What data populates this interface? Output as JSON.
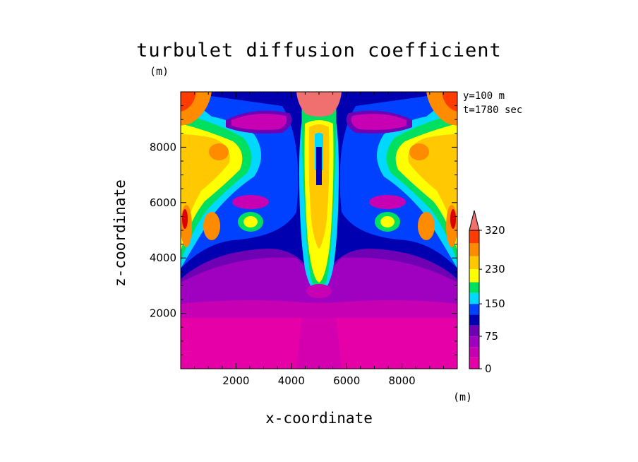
{
  "chart_data": {
    "type": "heatmap",
    "title": "turbulet diffusion coefficient",
    "xlabel": "x-coordinate",
    "ylabel": "z-coordinate",
    "x_unit": "(m)",
    "y_unit": "(m)",
    "xlim": [
      0,
      10000
    ],
    "ylim": [
      0,
      10000
    ],
    "x_ticks": [
      2000,
      4000,
      6000,
      8000
    ],
    "y_ticks": [
      2000,
      4000,
      6000,
      8000
    ],
    "annotations": [
      "y=100 m",
      "t=1780 sec"
    ],
    "colorbar": {
      "labels": [
        0,
        75,
        150,
        230,
        320
      ],
      "levels": [
        0,
        25,
        50,
        75,
        100,
        125,
        150,
        175,
        200,
        230,
        260,
        290,
        320
      ],
      "colors": [
        "#e600a8",
        "#c800b4",
        "#a000c0",
        "#7000b4",
        "#0000b0",
        "#0040ff",
        "#00d8ff",
        "#00e060",
        "#ffff00",
        "#ffc800",
        "#ff8c00",
        "#ff3c00",
        "#dc0000"
      ],
      "extend_top_color": "#f07070"
    }
  }
}
